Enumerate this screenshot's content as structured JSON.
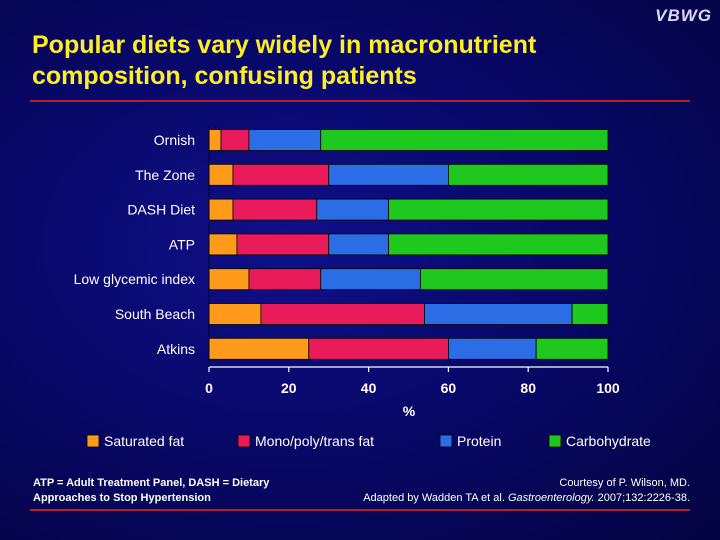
{
  "logo": "VBWG",
  "slide": {
    "title_line1": "Popular diets vary widely in macronutrient",
    "title_line2": "composition, confusing patients"
  },
  "footnotes": {
    "abbreviations_line1": "ATP = Adult Treatment Panel, DASH = Dietary",
    "abbreviations_line2": "Approaches to Stop Hypertension",
    "courtesy": "Courtesy of  P. Wilson, MD.",
    "adapted_prefix": "Adapted by Wadden TA et al. ",
    "adapted_journal": "Gastroenterology.",
    "adapted_suffix": " 2007;132:2226-38."
  },
  "chart_data": {
    "type": "bar",
    "orientation": "horizontal",
    "stacked": true,
    "categories": [
      "Ornish",
      "The Zone",
      "DASH Diet",
      "ATP",
      "Low glycemic index",
      "South Beach",
      "Atkins"
    ],
    "series": [
      {
        "name": "Saturated fat",
        "color": "#ff9a1a",
        "values": [
          3,
          6,
          6,
          7,
          10,
          13,
          25
        ]
      },
      {
        "name": "Mono/poly/trans fat",
        "color": "#ea1b5b",
        "values": [
          7,
          24,
          21,
          23,
          18,
          41,
          35
        ]
      },
      {
        "name": "Protein",
        "color": "#2a6de4",
        "values": [
          18,
          30,
          18,
          15,
          25,
          37,
          22
        ]
      },
      {
        "name": "Carbohydrate",
        "color": "#1ec81e",
        "values": [
          72,
          40,
          55,
          55,
          47,
          9,
          18
        ]
      }
    ],
    "xlabel": "%",
    "xlim": [
      0,
      100
    ],
    "xticks": [
      "0",
      "20",
      "40",
      "60",
      "80",
      "100"
    ],
    "grid": false,
    "legend_position": "bottom"
  }
}
